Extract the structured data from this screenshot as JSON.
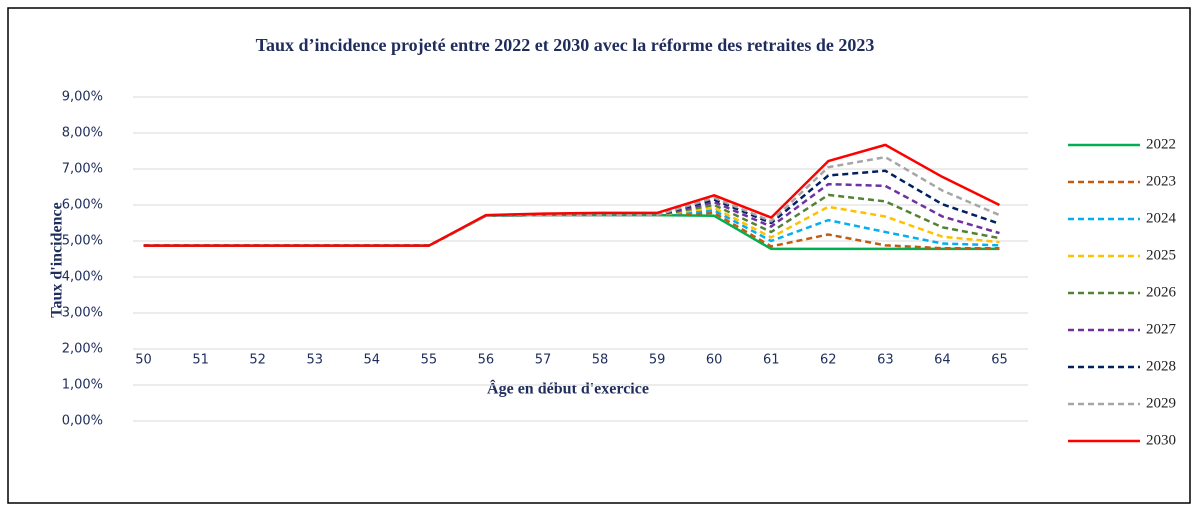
{
  "chart_data": {
    "type": "line",
    "title": "Taux d’incidence projeté entre 2022 et 2030 avec la réforme des retraites de 2023",
    "x_label": "Âge en début d'exercice",
    "y_label": "Taux d'incidence",
    "categories": [
      "50",
      "51",
      "52",
      "53",
      "54",
      "55",
      "56",
      "57",
      "58",
      "59",
      "60",
      "61",
      "62",
      "63",
      "64",
      "65"
    ],
    "ylim": [
      0,
      9
    ],
    "yticks": [
      {
        "value": 0,
        "label": "0,00%"
      },
      {
        "value": 1,
        "label": "1,00%"
      },
      {
        "value": 2,
        "label": "2,00%"
      },
      {
        "value": 3,
        "label": "3,00%"
      },
      {
        "value": 4,
        "label": "4,00%"
      },
      {
        "value": 5,
        "label": "5,00%"
      },
      {
        "value": 6,
        "label": "6,00%"
      },
      {
        "value": 7,
        "label": "7,00%"
      },
      {
        "value": 8,
        "label": "8,00%"
      },
      {
        "value": 9,
        "label": "9,00%"
      }
    ],
    "grid": true,
    "legend": "right",
    "series": [
      {
        "name": "2022",
        "color": "#00b050",
        "dashed": false,
        "values": [
          4.87,
          4.87,
          4.87,
          4.87,
          4.87,
          4.87,
          5.7,
          5.72,
          5.72,
          5.72,
          5.7,
          4.78,
          4.78,
          4.78,
          4.78,
          4.78
        ]
      },
      {
        "name": "2023",
        "color": "#c55a11",
        "dashed": true,
        "values": [
          4.87,
          4.87,
          4.87,
          4.87,
          4.87,
          4.87,
          5.7,
          5.72,
          5.72,
          5.72,
          5.78,
          4.85,
          5.18,
          4.88,
          4.8,
          4.8
        ]
      },
      {
        "name": "2024",
        "color": "#00b0f0",
        "dashed": true,
        "values": [
          4.87,
          4.87,
          4.87,
          4.87,
          4.87,
          4.87,
          5.7,
          5.72,
          5.72,
          5.72,
          5.85,
          5.0,
          5.58,
          5.25,
          4.93,
          4.88
        ]
      },
      {
        "name": "2025",
        "color": "#ffc000",
        "dashed": true,
        "values": [
          4.87,
          4.87,
          4.87,
          4.87,
          4.87,
          4.87,
          5.7,
          5.72,
          5.72,
          5.72,
          5.92,
          5.1,
          5.95,
          5.68,
          5.12,
          4.97
        ]
      },
      {
        "name": "2026",
        "color": "#548235",
        "dashed": true,
        "values": [
          4.87,
          4.87,
          4.87,
          4.87,
          4.87,
          4.87,
          5.7,
          5.72,
          5.72,
          5.72,
          6.0,
          5.25,
          6.28,
          6.1,
          5.38,
          5.08
        ]
      },
      {
        "name": "2027",
        "color": "#7030a0",
        "dashed": true,
        "values": [
          4.87,
          4.87,
          4.87,
          4.87,
          4.87,
          4.87,
          5.7,
          5.72,
          5.72,
          5.72,
          6.08,
          5.4,
          6.58,
          6.53,
          5.68,
          5.22
        ]
      },
      {
        "name": "2028",
        "color": "#002060",
        "dashed": true,
        "values": [
          4.87,
          4.87,
          4.87,
          4.87,
          4.87,
          4.87,
          5.7,
          5.72,
          5.72,
          5.72,
          6.15,
          5.5,
          6.82,
          6.95,
          6.02,
          5.48
        ]
      },
      {
        "name": "2029",
        "color": "#a6a6a6",
        "dashed": true,
        "values": [
          4.87,
          4.87,
          4.87,
          4.87,
          4.87,
          4.87,
          5.7,
          5.72,
          5.72,
          5.72,
          6.2,
          5.55,
          7.05,
          7.33,
          6.4,
          5.72
        ]
      },
      {
        "name": "2030",
        "color": "#ff0000",
        "dashed": false,
        "values": [
          4.87,
          4.87,
          4.87,
          4.87,
          4.87,
          4.87,
          5.72,
          5.76,
          5.78,
          5.78,
          6.27,
          5.65,
          7.22,
          7.67,
          6.78,
          6.0
        ]
      }
    ]
  }
}
